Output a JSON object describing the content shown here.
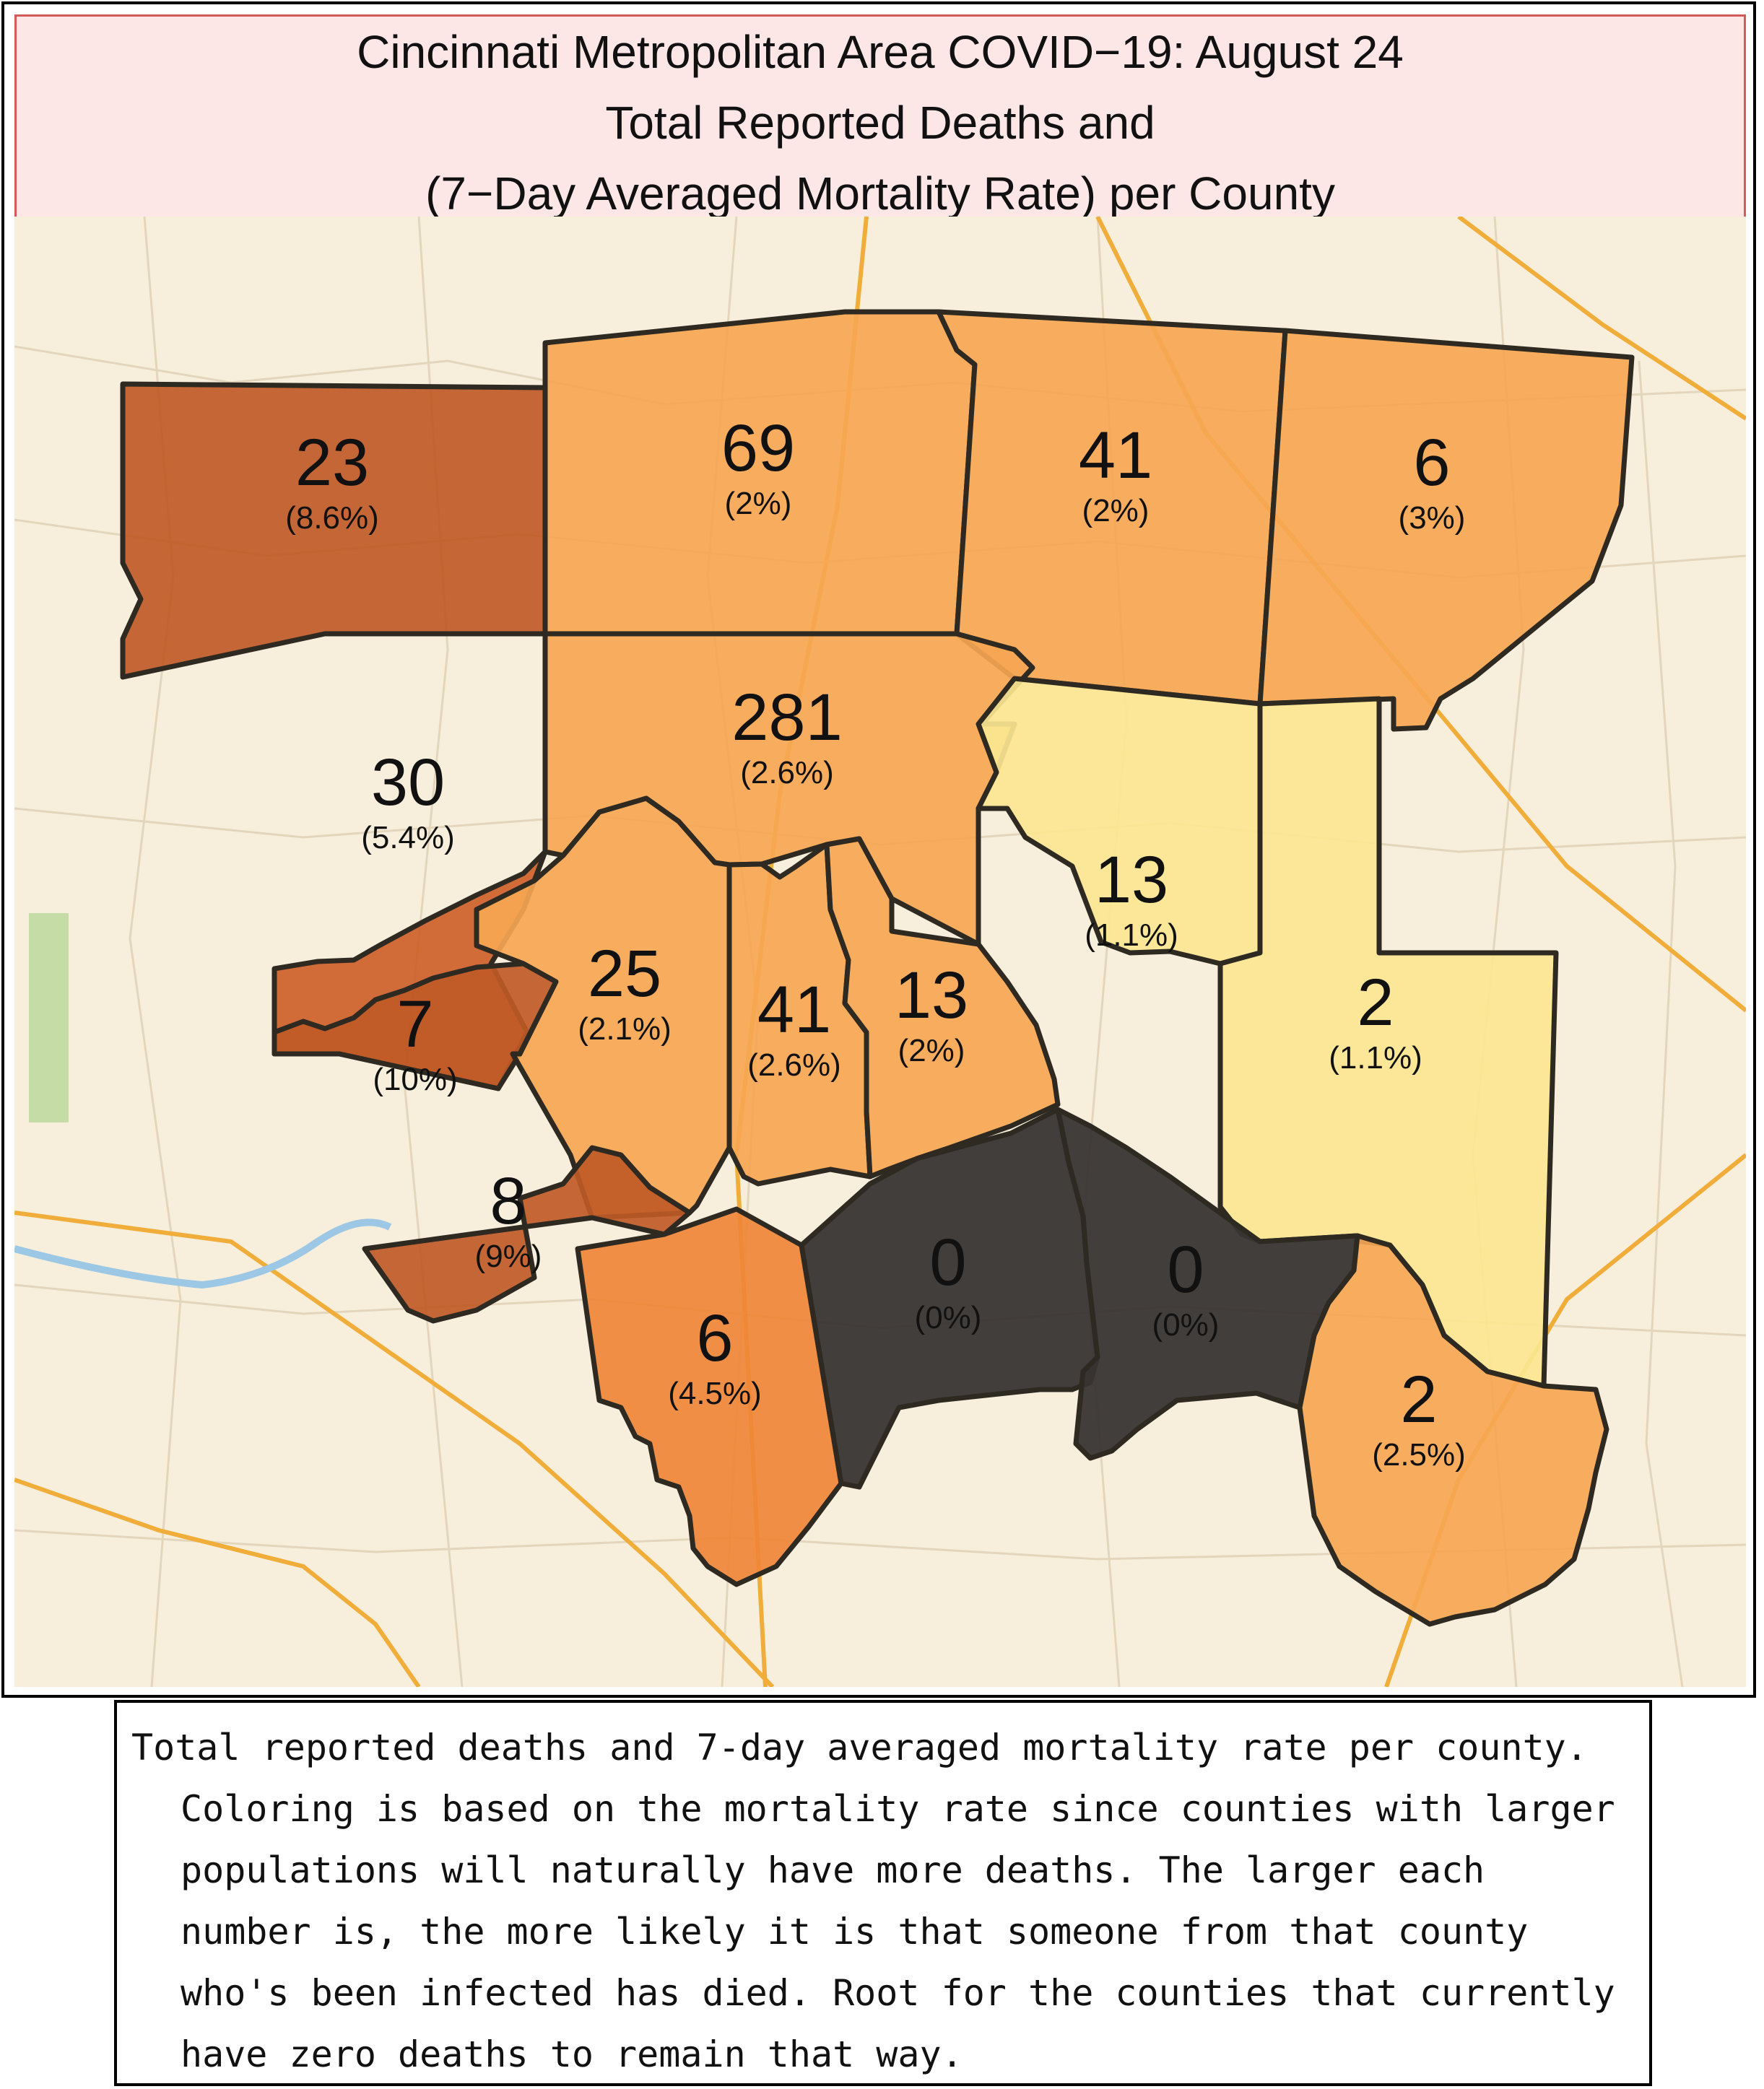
{
  "title": {
    "line1": "Cincinnati Metropolitan Area COVID−19: August 24",
    "line2": "Total Reported Deaths and",
    "line3": "(7−Day Averaged Mortality Rate) per County"
  },
  "colors": {
    "rate_very_high": "#bf5a26",
    "rate_high": "#cd5f28",
    "rate_elevated": "#ef8637",
    "rate_medium": "#f6a653",
    "rate_low": "#fbe690",
    "rate_zero": "#383431",
    "base_map": "#f7efdc"
  },
  "counties": [
    {
      "deaths": "23",
      "rate": "(8.6%)",
      "color_key": "rate_very_high"
    },
    {
      "deaths": "69",
      "rate": "(2%)",
      "color_key": "rate_medium"
    },
    {
      "deaths": "41",
      "rate": "(2%)",
      "color_key": "rate_medium"
    },
    {
      "deaths": "6",
      "rate": "(3%)",
      "color_key": "rate_medium"
    },
    {
      "deaths": "30",
      "rate": "(5.4%)",
      "color_key": "rate_high"
    },
    {
      "deaths": "281",
      "rate": "(2.6%)",
      "color_key": "rate_medium"
    },
    {
      "deaths": "13",
      "rate": "(1.1%)",
      "color_key": "rate_low"
    },
    {
      "deaths": "2",
      "rate": "(1.1%)",
      "color_key": "rate_low"
    },
    {
      "deaths": "7",
      "rate": "(10%)",
      "color_key": "rate_very_high"
    },
    {
      "deaths": "25",
      "rate": "(2.1%)",
      "color_key": "rate_medium"
    },
    {
      "deaths": "41",
      "rate": "(2.6%)",
      "color_key": "rate_medium"
    },
    {
      "deaths": "13",
      "rate": "(2%)",
      "color_key": "rate_medium"
    },
    {
      "deaths": "8",
      "rate": "(9%)",
      "color_key": "rate_very_high"
    },
    {
      "deaths": "6",
      "rate": "(4.5%)",
      "color_key": "rate_elevated"
    },
    {
      "deaths": "0",
      "rate": "(0%)",
      "color_key": "rate_zero"
    },
    {
      "deaths": "0",
      "rate": "(0%)",
      "color_key": "rate_zero"
    },
    {
      "deaths": "2",
      "rate": "(2.5%)",
      "color_key": "rate_medium"
    }
  ],
  "caption": "Total reported deaths and 7-day averaged mortality rate per county. Coloring is based on the mortality rate since counties with larger populations will naturally have more deaths. The larger each number is, the more likely it is that someone from that county who's been infected has died. Root for the counties that currently have zero deaths to remain that way."
}
